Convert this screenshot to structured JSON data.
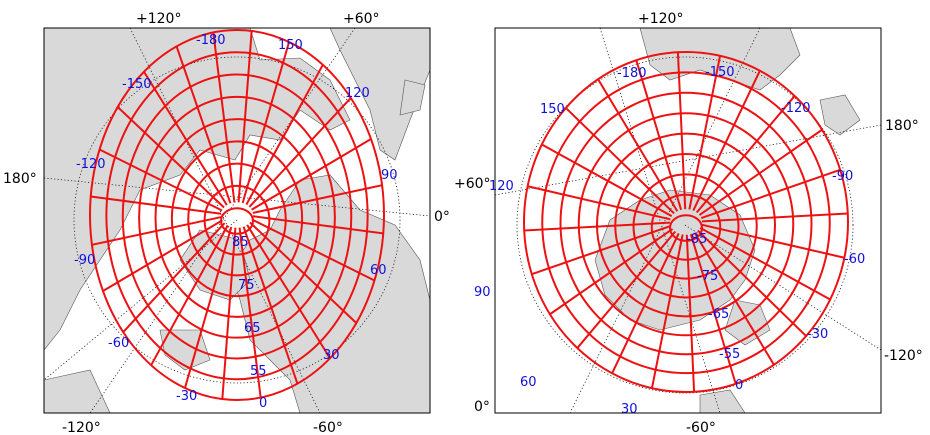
{
  "colors": {
    "grid": "#ee1111",
    "grid_labels": "#1010d8",
    "land": "#d9d9d9",
    "background": "#ffffff"
  },
  "left_map": {
    "outer_labels": {
      "top_left": "+120°",
      "top_right": "+60°",
      "left": "180°",
      "right": "0°",
      "bottom_left": "-120°",
      "bottom_right": "-60°"
    },
    "grid_labels": [
      "-180",
      "150",
      "-150",
      "120",
      "-120",
      "90",
      "-90",
      "60",
      "-60",
      "30",
      "-30",
      "0",
      "85",
      "75",
      "65",
      "55"
    ]
  },
  "right_map": {
    "outer_labels": {
      "top": "+120°",
      "right_upper": "180°",
      "left_upper": "+60°",
      "right_lower": "-120°",
      "bottom_left": "0°",
      "bottom": "-60°"
    },
    "grid_labels": [
      "-180",
      "-150",
      "150",
      "-120",
      "120",
      "-90",
      "-60",
      "90",
      "-30",
      "60",
      "0",
      "30",
      "-85",
      "-75",
      "-65",
      "-55"
    ]
  }
}
